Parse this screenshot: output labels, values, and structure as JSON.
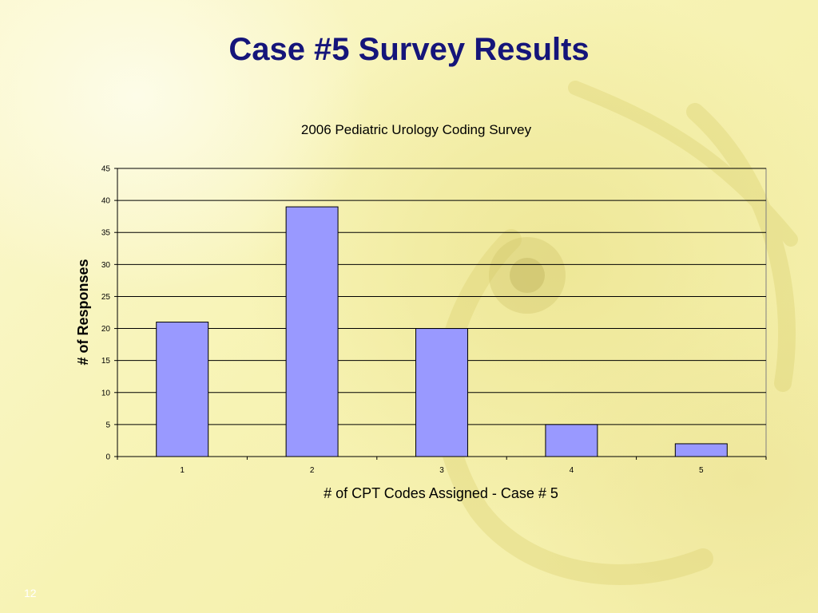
{
  "slide": {
    "title": "Case #5 Survey Results",
    "number": "12"
  },
  "chart_data": {
    "type": "bar",
    "title": "2006 Pediatric Urology Coding Survey",
    "xlabel": "# of CPT Codes Assigned - Case # 5",
    "ylabel": "# of Responses",
    "categories": [
      "1",
      "2",
      "3",
      "4",
      "5"
    ],
    "values": [
      21,
      39,
      20,
      5,
      2
    ],
    "ylim": [
      0,
      45
    ],
    "yticks": [
      0,
      5,
      10,
      15,
      20,
      25,
      30,
      35,
      40,
      45
    ],
    "grid": true,
    "legend": "none",
    "bar_color": "#9999ff",
    "bar_outline": "#000000"
  },
  "colors": {
    "title": "#15157a"
  }
}
